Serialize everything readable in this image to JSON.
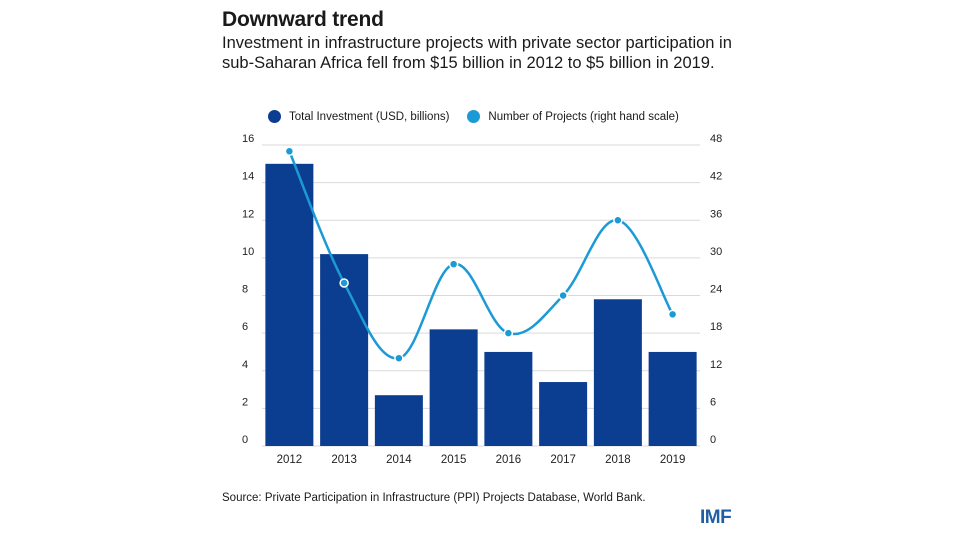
{
  "header": {
    "title": "Downward trend",
    "subtitle": "Investment in infrastructure projects with private sector participation in sub-Saharan Africa fell from $15 billion in 2012 to $5 billion in 2019."
  },
  "legend": {
    "bars_label": "Total Investment (USD, billions)",
    "line_label": "Number of Projects (right hand scale)"
  },
  "footer": {
    "source": "Source: Private Participation in Infrastructure (PPI) Projects Database, World Bank.",
    "logo": "IMF"
  },
  "colors": {
    "bar": "#0b3d91",
    "line": "#1b9ad6",
    "grid": "#d9d9d9"
  },
  "chart_data": {
    "type": "bar",
    "categories": [
      "2012",
      "2013",
      "2014",
      "2015",
      "2016",
      "2017",
      "2018",
      "2019"
    ],
    "series": [
      {
        "name": "Total Investment (USD, billions)",
        "type": "bar",
        "axis": "left",
        "values": [
          15,
          10.2,
          2.7,
          6.2,
          5,
          3.4,
          7.8,
          5
        ]
      },
      {
        "name": "Number of Projects (right hand scale)",
        "type": "line",
        "axis": "right",
        "values": [
          47,
          26,
          14,
          29,
          18,
          24,
          36,
          21
        ]
      }
    ],
    "y_left": {
      "ticks": [
        "0",
        "2",
        "4",
        "6",
        "8",
        "10",
        "12",
        "14",
        "16"
      ],
      "ylim": [
        0,
        16
      ]
    },
    "y_right": {
      "ticks": [
        "0",
        "6",
        "12",
        "18",
        "24",
        "30",
        "36",
        "42",
        "48"
      ],
      "ylim": [
        0,
        48
      ]
    },
    "grid": "horizontal",
    "legend_position": "top"
  }
}
